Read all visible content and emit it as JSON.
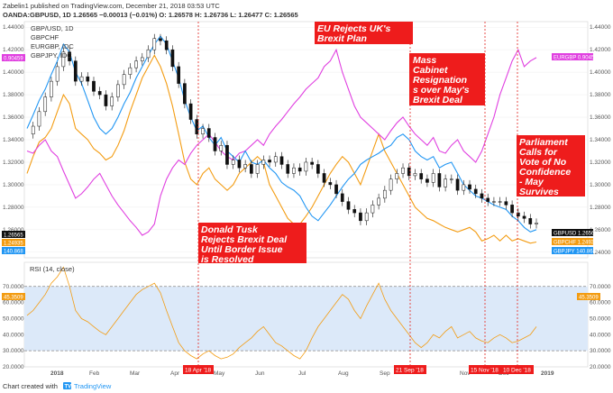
{
  "header": {
    "line1": "Zabelin1 published on TradingView.com, December 21, 2018 03:53 UTC",
    "line2": "OANDA:GBPUSD, 1D  1.26565  −0.00013 (−0.01%)  O: 1.26578  H: 1.26736  L: 1.26477  C: 1.26565"
  },
  "chart_data": {
    "type": "line",
    "legend": [
      "GBP/USD, 1D",
      "GBPCHF",
      "EURGBP, IDC",
      "GBPJPY, IDC"
    ],
    "x_labels": [
      "2018",
      "Feb",
      "Mar",
      "Apr",
      "May",
      "Jun",
      "Jul",
      "Aug",
      "Sep",
      "Nov",
      "Dec",
      "2019"
    ],
    "event_dates": [
      "18 Apr '18",
      "21 Sep '18",
      "15 Nov '18",
      "10 Dec '18"
    ],
    "price_axis": {
      "ylim": [
        1.235,
        1.445
      ],
      "ticks": [
        "1.44000",
        "1.42000",
        "1.40000",
        "1.38000",
        "1.36000",
        "1.34000",
        "1.32000",
        "1.30000",
        "1.28000",
        "1.26000",
        "1.24000"
      ],
      "left_ticks": [
        "1.44000",
        "1.42000",
        "1.40000",
        "1.38000",
        "1.36000",
        "1.34000",
        "1.32000",
        "1.30000",
        "1.28000",
        "1.26000",
        "1.24000"
      ]
    },
    "price_tags": {
      "left": [
        {
          "text": "0.90459",
          "color": "#e040e0"
        },
        {
          "text": "1.26565",
          "color": "#111111"
        },
        {
          "text": "1.24935",
          "color": "#f39c12"
        },
        {
          "text": "140.868",
          "color": "#2196f3"
        }
      ],
      "right": [
        {
          "text": "EURGBP  0.90459",
          "color": "#e040e0"
        },
        {
          "text": "GBPUSD  1.26565",
          "color": "#111111"
        },
        {
          "text": "GBPCHF  1.24935",
          "color": "#f39c12"
        },
        {
          "text": "GBPJPY  140.868",
          "color": "#2196f3"
        }
      ]
    },
    "series": [
      {
        "name": "GBPUSD",
        "color": "#111111",
        "kind": "candles",
        "values": [
          1.345,
          1.352,
          1.365,
          1.378,
          1.392,
          1.405,
          1.418,
          1.41,
          1.392,
          1.396,
          1.392,
          1.383,
          1.38,
          1.37,
          1.378,
          1.389,
          1.398,
          1.404,
          1.41,
          1.413,
          1.42,
          1.43,
          1.428,
          1.42,
          1.405,
          1.39,
          1.372,
          1.358,
          1.345,
          1.35,
          1.342,
          1.33,
          1.335,
          1.318,
          1.322,
          1.315,
          1.318,
          1.31,
          1.318,
          1.322,
          1.32,
          1.325,
          1.318,
          1.31,
          1.315,
          1.312,
          1.32,
          1.318,
          1.31,
          1.302,
          1.3,
          1.292,
          1.285,
          1.278,
          1.275,
          1.268,
          1.275,
          1.282,
          1.288,
          1.295,
          1.305,
          1.31,
          1.315,
          1.308,
          1.31,
          1.305,
          1.302,
          1.31,
          1.298,
          1.305,
          1.305,
          1.295,
          1.3,
          1.296,
          1.292,
          1.288,
          1.285,
          1.285,
          1.285,
          1.282,
          1.275,
          1.272,
          1.27,
          1.265,
          1.266
        ]
      },
      {
        "name": "GBPCHF",
        "color": "#f39c12",
        "kind": "line",
        "values": [
          1.31,
          1.325,
          1.338,
          1.342,
          1.35,
          1.365,
          1.38,
          1.372,
          1.35,
          1.345,
          1.34,
          1.332,
          1.328,
          1.322,
          1.325,
          1.335,
          1.348,
          1.365,
          1.38,
          1.395,
          1.405,
          1.415,
          1.405,
          1.39,
          1.37,
          1.345,
          1.32,
          1.305,
          1.3,
          1.31,
          1.315,
          1.305,
          1.3,
          1.295,
          1.3,
          1.31,
          1.315,
          1.32,
          1.325,
          1.32,
          1.3,
          1.29,
          1.28,
          1.27,
          1.265,
          1.265,
          1.272,
          1.28,
          1.29,
          1.3,
          1.31,
          1.318,
          1.325,
          1.32,
          1.31,
          1.3,
          1.315,
          1.33,
          1.345,
          1.33,
          1.32,
          1.31,
          1.3,
          1.29,
          1.28,
          1.275,
          1.27,
          1.268,
          1.265,
          1.262,
          1.26,
          1.258,
          1.26,
          1.262,
          1.258,
          1.25,
          1.252,
          1.255,
          1.25,
          1.255,
          1.25,
          1.252,
          1.25,
          1.248,
          1.249
        ]
      },
      {
        "name": "EURGBP",
        "color": "#e040e0",
        "kind": "line",
        "values": [
          1.33,
          1.328,
          1.335,
          1.34,
          1.33,
          1.325,
          1.312,
          1.3,
          1.288,
          1.292,
          1.298,
          1.305,
          1.31,
          1.3,
          1.29,
          1.282,
          1.275,
          1.268,
          1.262,
          1.255,
          1.258,
          1.265,
          1.29,
          1.305,
          1.315,
          1.322,
          1.318,
          1.328,
          1.335,
          1.34,
          1.345,
          1.338,
          1.33,
          1.325,
          1.322,
          1.328,
          1.33,
          1.335,
          1.34,
          1.335,
          1.345,
          1.352,
          1.358,
          1.365,
          1.372,
          1.378,
          1.385,
          1.39,
          1.395,
          1.405,
          1.41,
          1.42,
          1.4,
          1.385,
          1.37,
          1.36,
          1.355,
          1.35,
          1.345,
          1.34,
          1.348,
          1.355,
          1.36,
          1.352,
          1.345,
          1.34,
          1.335,
          1.342,
          1.33,
          1.328,
          1.335,
          1.34,
          1.33,
          1.325,
          1.32,
          1.33,
          1.345,
          1.36,
          1.38,
          1.395,
          1.41,
          1.42,
          1.405,
          1.41,
          1.413
        ]
      },
      {
        "name": "GBPJPY",
        "color": "#2196f3",
        "kind": "line",
        "values": [
          1.35,
          1.362,
          1.375,
          1.385,
          1.398,
          1.41,
          1.425,
          1.418,
          1.4,
          1.39,
          1.375,
          1.36,
          1.35,
          1.345,
          1.35,
          1.36,
          1.372,
          1.382,
          1.395,
          1.405,
          1.415,
          1.425,
          1.432,
          1.425,
          1.41,
          1.395,
          1.375,
          1.36,
          1.348,
          1.352,
          1.342,
          1.335,
          1.342,
          1.33,
          1.325,
          1.32,
          1.33,
          1.32,
          1.318,
          1.322,
          1.315,
          1.31,
          1.302,
          1.298,
          1.295,
          1.29,
          1.28,
          1.272,
          1.268,
          1.275,
          1.282,
          1.29,
          1.298,
          1.305,
          1.31,
          1.318,
          1.322,
          1.325,
          1.328,
          1.332,
          1.335,
          1.342,
          1.345,
          1.34,
          1.33,
          1.325,
          1.322,
          1.325,
          1.315,
          1.318,
          1.32,
          1.31,
          1.3,
          1.295,
          1.29,
          1.288,
          1.285,
          1.282,
          1.28,
          1.278,
          1.272,
          1.268,
          1.262,
          1.258,
          1.26
        ]
      }
    ],
    "rsi": {
      "title": "RSI (14, close)",
      "ylim": [
        20,
        85
      ],
      "ticks": [
        "70.0000",
        "60.0000",
        "50.0000",
        "40.0000",
        "30.0000",
        "20.0000"
      ],
      "band": [
        30,
        70
      ],
      "color": "#f39c12",
      "last": "45.3509",
      "values": [
        52,
        55,
        60,
        65,
        72,
        76,
        82,
        70,
        55,
        50,
        48,
        45,
        42,
        40,
        45,
        50,
        55,
        60,
        65,
        68,
        70,
        72,
        66,
        55,
        45,
        35,
        30,
        27,
        25,
        28,
        30,
        27,
        25,
        26,
        28,
        32,
        35,
        38,
        42,
        45,
        40,
        35,
        33,
        30,
        27,
        25,
        30,
        38,
        45,
        50,
        55,
        60,
        65,
        62,
        55,
        50,
        58,
        65,
        72,
        62,
        55,
        50,
        45,
        40,
        35,
        32,
        35,
        40,
        38,
        42,
        45,
        38,
        40,
        42,
        38,
        36,
        35,
        38,
        40,
        38,
        35,
        36,
        38,
        40,
        45
      ]
    },
    "annotations": [
      {
        "lines": [
          "Donald Tusk",
          "Rejects Brexit Deal",
          "Until Border Issue",
          "is Resolved"
        ]
      },
      {
        "lines": [
          "EU Rejects UK's",
          "Brexit Plan"
        ]
      },
      {
        "lines": [
          "Mass",
          "Cabinet",
          "Resignation",
          "s over May's",
          "Brexit Deal"
        ]
      },
      {
        "lines": [
          "Parliament",
          "Calls for",
          "Vote of No",
          "Confidence",
          "- May",
          "Survives"
        ]
      }
    ]
  },
  "footer": {
    "prefix": "Chart created with",
    "brand": "TradingView"
  },
  "colors": {
    "event_line": "#e53935",
    "annotation_bg": "#ee1c1c",
    "rsi_band": "#dce9f9"
  }
}
